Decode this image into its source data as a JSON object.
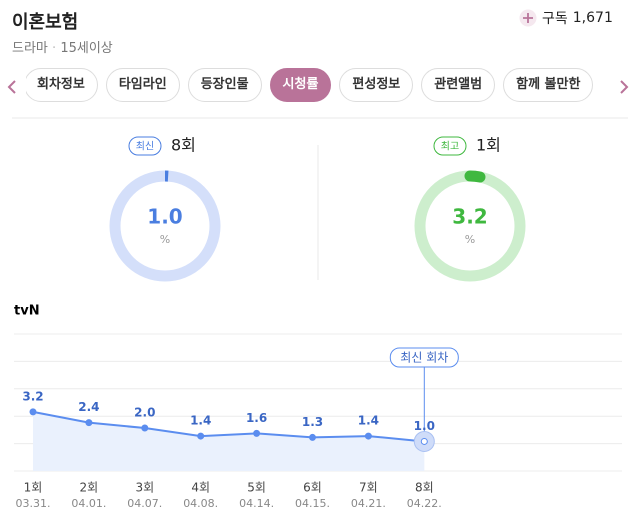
{
  "header": {
    "title": "이혼보험",
    "subscribe": "구독",
    "subscribers": "1,671",
    "genre": "드라마",
    "rating": "15세이상"
  },
  "tabs": {
    "items": [
      "회차정보",
      "타임라인",
      "등장인물",
      "시청률",
      "편성정보",
      "관련앨범",
      "함께 볼만한"
    ],
    "active": "시청률"
  },
  "summary": {
    "latest": {
      "badge": "최신",
      "episode": "8회",
      "value": 1.0,
      "value_label": "1.0",
      "unit": "%",
      "color": "#4a7ee0",
      "ring": "#d4dffa"
    },
    "highest": {
      "badge": "최고",
      "episode": "1회",
      "value": 3.2,
      "value_label": "3.2",
      "unit": "%",
      "color": "#3fb83f",
      "ring": "#cdeecd"
    }
  },
  "chart_data": {
    "type": "line",
    "title": "tvN",
    "categories": [
      "1회",
      "2회",
      "3회",
      "4회",
      "5회",
      "6회",
      "7회",
      "8회"
    ],
    "dates": [
      "03.31.",
      "04.01.",
      "04.07.",
      "04.08.",
      "04.14.",
      "04.15.",
      "04.21.",
      "04.22."
    ],
    "values": [
      3.2,
      2.4,
      2.0,
      1.4,
      1.6,
      1.3,
      1.4,
      1.0
    ],
    "value_labels": [
      "3.2",
      "2.4",
      "2.0",
      "1.4",
      "1.6",
      "1.3",
      "1.4",
      "1.0"
    ],
    "color": "#5b8def",
    "ylim": [
      -1.2,
      9.0
    ],
    "annotation": "최신 회차"
  }
}
